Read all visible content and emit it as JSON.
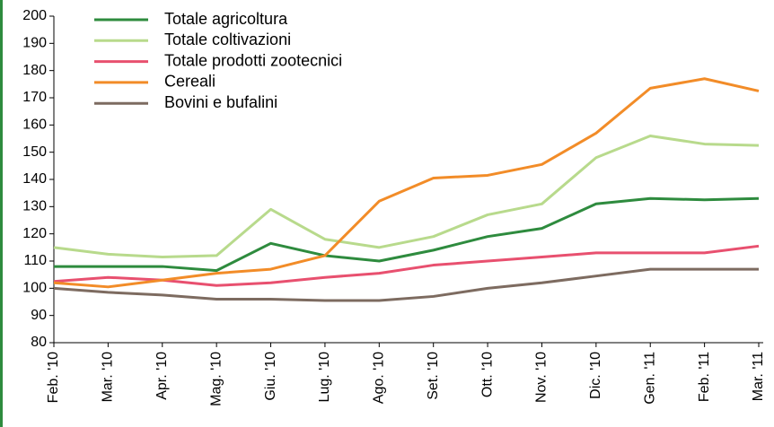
{
  "chart_data": {
    "type": "line",
    "categories": [
      "Feb. '10",
      "Mar. '10",
      "Apr. '10",
      "Mag. '10",
      "Giu. '10",
      "Lug. '10",
      "Ago. '10",
      "Set. '10",
      "Ott. '10",
      "Nov. '10",
      "Dic. '10",
      "Gen. '11",
      "Feb. '11",
      "Mar. '11"
    ],
    "series": [
      {
        "name": "Totale agricoltura",
        "color": "#2e8b3e",
        "values": [
          108,
          108,
          108,
          106.5,
          116.5,
          112,
          110,
          114,
          119,
          122,
          131,
          133,
          132.5,
          133
        ]
      },
      {
        "name": "Totale coltivazioni",
        "color": "#b8da8c",
        "values": [
          115,
          112.5,
          111.5,
          112,
          129,
          118,
          115,
          119,
          127,
          131,
          148,
          156,
          153,
          152.5
        ]
      },
      {
        "name": "Totale prodotti zootecnici",
        "color": "#e8506f",
        "values": [
          102.5,
          104,
          103,
          101,
          102,
          104,
          105.5,
          108.5,
          110,
          111.5,
          113,
          113,
          113,
          115.5
        ]
      },
      {
        "name": "Cereali",
        "color": "#f28c28",
        "values": [
          102,
          100.5,
          103,
          105.5,
          107,
          112,
          132,
          140.5,
          141.5,
          145.5,
          157,
          173.5,
          177,
          172.5
        ]
      },
      {
        "name": "Bovini e bufalini",
        "color": "#7d6b60",
        "values": [
          100,
          98.5,
          97.5,
          96,
          96,
          95.5,
          95.5,
          97,
          100,
          102,
          104.5,
          107,
          107,
          107
        ]
      }
    ],
    "ylim": [
      80,
      200
    ],
    "yticks": [
      80,
      90,
      100,
      110,
      120,
      130,
      140,
      150,
      160,
      170,
      180,
      190,
      200
    ],
    "grid": false,
    "legend": "top-left"
  }
}
